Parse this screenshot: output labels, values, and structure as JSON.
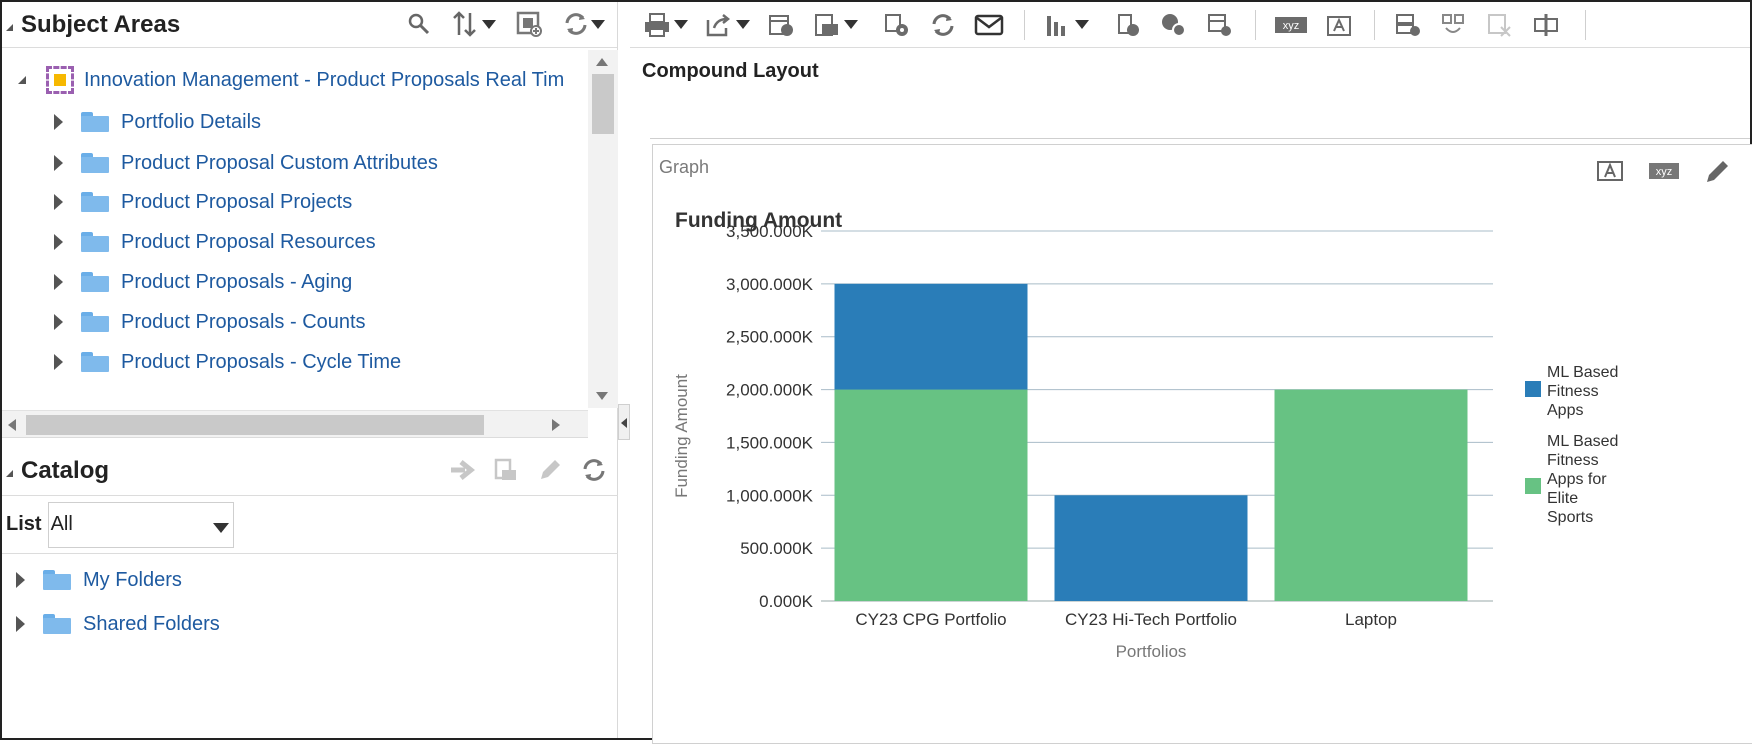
{
  "subject_areas": {
    "title": "Subject Areas",
    "tools": [
      "search-icon",
      "sort-icon",
      "add-subject-icon",
      "refresh-icon"
    ],
    "root": "Innovation Management - Product Proposals Real Tim",
    "items": [
      "Portfolio Details",
      "Product Proposal Custom Attributes",
      "Product Proposal Projects",
      "Product Proposal Resources",
      "Product Proposals - Aging",
      "Product Proposals - Counts",
      "Product Proposals - Cycle Time"
    ]
  },
  "catalog": {
    "title": "Catalog",
    "list_label": "List",
    "list_value": "All",
    "folders": [
      "My Folders",
      "Shared Folders"
    ]
  },
  "editor": {
    "compound_title": "Compound Layout",
    "graph_label": "Graph",
    "xyz_label": "xyz"
  },
  "colors": {
    "series_blue": "#2a7db8",
    "series_green": "#67c283",
    "link": "#1e5aa0"
  },
  "chart_data": {
    "type": "bar",
    "stacked": true,
    "title": "Funding Amount",
    "xlabel": "Portfolios",
    "ylabel": "Funding Amount",
    "categories": [
      "CY23 CPG Portfolio",
      "CY23 Hi-Tech Portfolio",
      "Laptop"
    ],
    "series": [
      {
        "name": "ML Based Fitness Apps for Elite Sports",
        "legend_lines": [
          "ML Based",
          "Fitness",
          "Apps for",
          "Elite",
          "Sports"
        ],
        "color": "#67c283",
        "values": [
          2000,
          0,
          2000
        ]
      },
      {
        "name": "ML Based Fitness Apps",
        "legend_lines": [
          "ML Based",
          "Fitness",
          "Apps"
        ],
        "color": "#2a7db8",
        "values": [
          1000,
          1000,
          0
        ]
      }
    ],
    "unit": "K",
    "ylim": [
      0,
      3500
    ],
    "yticks": [
      "0.000K",
      "500.000K",
      "1,000.000K",
      "1,500.000K",
      "2,000.000K",
      "2,500.000K",
      "3,000.000K",
      "3,500.000K"
    ],
    "legend_position": "right",
    "grid": true
  }
}
